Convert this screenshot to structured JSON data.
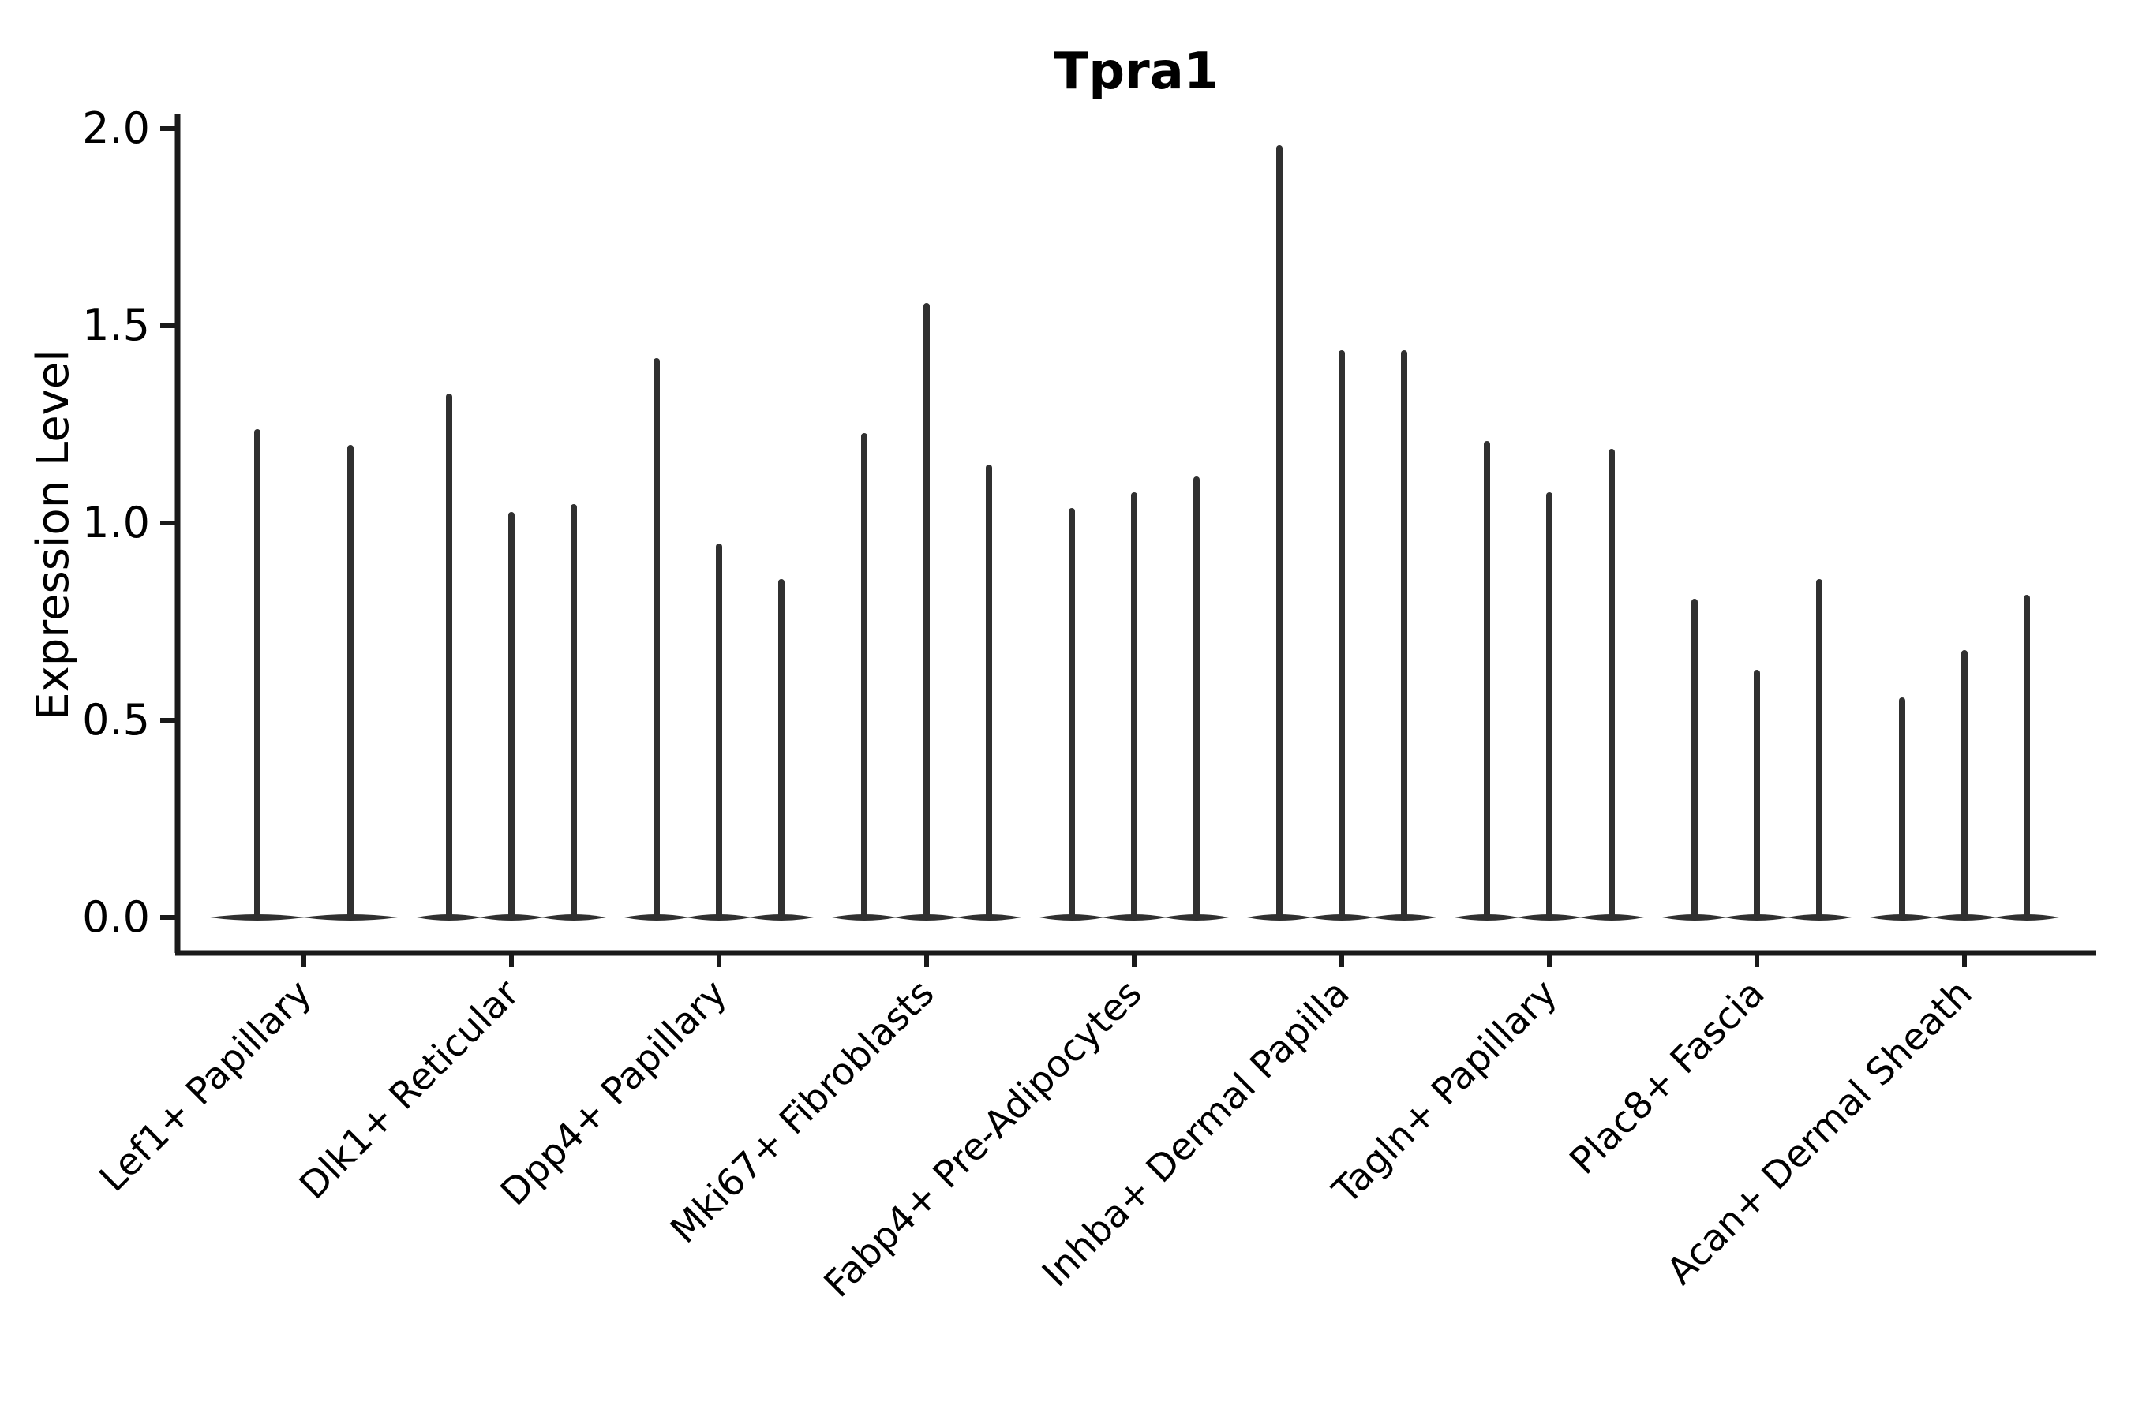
{
  "chart_data": {
    "type": "violin",
    "title": "Tpra1",
    "ylabel": "Expression Level",
    "xlabel": "",
    "ylim": [
      0.0,
      2.0
    ],
    "yticks": [
      0.0,
      0.5,
      1.0,
      1.5,
      2.0
    ],
    "ytick_labels": [
      "0.0",
      "0.5",
      "1.0",
      "1.5",
      "2.0"
    ],
    "grid": false,
    "legend": null,
    "xtick_label_rotation_deg": 45,
    "description": "Needle-thin violins (nearly all density at 0) shown as vertical spikes rising from flat lens-shaped bases at y=0; each cell-type group contains 2-3 violins.",
    "categories": [
      "Lef1+ Papillary",
      "Dlk1+ Reticular",
      "Dpp4+ Papillary",
      "Mki67+ Fibroblasts",
      "Fabp4+ Pre-Adipocytes",
      "Inhba+ Dermal Papilla",
      "Tagln+ Papillary",
      "Plac8+ Fascia",
      "Acan+ Dermal Sheath"
    ],
    "groups": [
      {
        "label": "Lef1+ Papillary",
        "spike_maxima": [
          1.23,
          1.19
        ]
      },
      {
        "label": "Dlk1+ Reticular",
        "spike_maxima": [
          1.32,
          1.02,
          1.04
        ]
      },
      {
        "label": "Dpp4+ Papillary",
        "spike_maxima": [
          1.41,
          0.94,
          0.85
        ]
      },
      {
        "label": "Mki67+ Fibroblasts",
        "spike_maxima": [
          1.22,
          1.55,
          1.14
        ]
      },
      {
        "label": "Fabp4+ Pre-Adipocytes",
        "spike_maxima": [
          1.03,
          1.07,
          1.11
        ]
      },
      {
        "label": "Inhba+ Dermal Papilla",
        "spike_maxima": [
          1.95,
          1.43,
          1.43
        ]
      },
      {
        "label": "Tagln+ Papillary",
        "spike_maxima": [
          1.2,
          1.07,
          1.18
        ]
      },
      {
        "label": "Plac8+ Fascia",
        "spike_maxima": [
          0.8,
          0.62,
          0.85
        ]
      },
      {
        "label": "Acan+ Dermal Sheath",
        "spike_maxima": [
          0.55,
          0.67,
          0.81
        ]
      }
    ],
    "style": {
      "violin_color": "#303030",
      "axis_color": "#1a1a1a",
      "text_color": "#000000",
      "background": "#ffffff"
    }
  }
}
